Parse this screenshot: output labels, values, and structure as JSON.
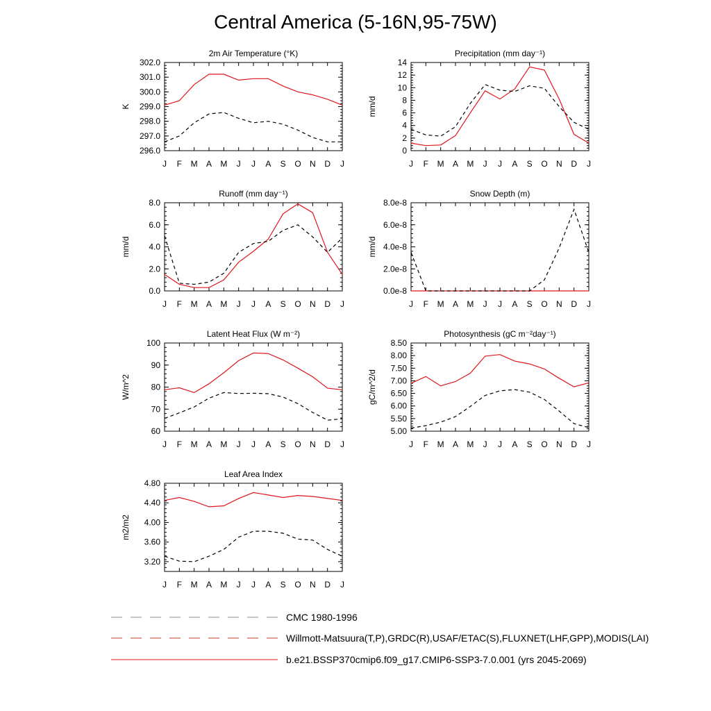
{
  "page_title": "Central America (5-16N,95-75W)",
  "colors": {
    "model": "#e0151b",
    "obs": "#000000",
    "axis": "#000000"
  },
  "months": [
    "J",
    "F",
    "M",
    "A",
    "M",
    "J",
    "J",
    "A",
    "S",
    "O",
    "N",
    "D",
    "J"
  ],
  "legend": [
    {
      "label": "CMC 1980-1996",
      "style": "dash-gray"
    },
    {
      "label": "Willmott-Matsuura(T,P),GRDC(R),USAF/ETAC(S),FLUXNET(LHF,GPP),MODIS(LAI)",
      "style": "dash-color"
    },
    {
      "label": "b.e21.BSSP370cmip6.f09_g17.CMIP6-SSP3-7.0.001 (yrs 2045-2069)",
      "style": "solid-red"
    }
  ],
  "chart_data": [
    {
      "type": "line",
      "title": "2m Air Temperature (°K)",
      "ylabel": "K",
      "ylim": [
        296.0,
        302.0
      ],
      "yticks": [
        "296.0",
        "297.0",
        "298.0",
        "299.0",
        "300.0",
        "301.0",
        "302.0"
      ],
      "x": [
        "J",
        "F",
        "M",
        "A",
        "M",
        "J",
        "J",
        "A",
        "S",
        "O",
        "N",
        "D",
        "J"
      ],
      "series": [
        {
          "role": "model",
          "values": [
            299.1,
            299.4,
            300.5,
            301.2,
            301.2,
            300.8,
            300.9,
            300.9,
            300.4,
            300.0,
            299.8,
            299.5,
            299.1
          ]
        },
        {
          "role": "obs",
          "values": [
            296.6,
            297.0,
            297.9,
            298.5,
            298.6,
            298.2,
            297.9,
            298.0,
            297.8,
            297.4,
            296.9,
            296.6,
            296.6
          ]
        }
      ]
    },
    {
      "type": "line",
      "title": "Precipitation (mm day⁻¹)",
      "ylabel": "mm/d",
      "ylim": [
        0,
        14
      ],
      "yticks": [
        "0",
        "2",
        "4",
        "6",
        "8",
        "10",
        "12",
        "14"
      ],
      "x": [
        "J",
        "F",
        "M",
        "A",
        "M",
        "J",
        "J",
        "A",
        "S",
        "O",
        "N",
        "D",
        "J"
      ],
      "series": [
        {
          "role": "model",
          "values": [
            1.2,
            0.8,
            0.9,
            2.4,
            6.0,
            9.5,
            8.2,
            9.8,
            13.3,
            12.8,
            8.2,
            2.6,
            1.2
          ]
        },
        {
          "role": "obs",
          "values": [
            3.4,
            2.5,
            2.3,
            3.8,
            7.5,
            10.5,
            9.6,
            9.4,
            10.3,
            9.9,
            7.0,
            4.5,
            3.4
          ]
        }
      ]
    },
    {
      "type": "line",
      "title": "Runoff (mm day⁻¹)",
      "ylabel": "mm/d",
      "ylim": [
        0,
        8
      ],
      "yticks": [
        "0.0",
        "2.0",
        "4.0",
        "6.0",
        "8.0"
      ],
      "x": [
        "J",
        "F",
        "M",
        "A",
        "M",
        "J",
        "J",
        "A",
        "S",
        "O",
        "N",
        "D",
        "J"
      ],
      "series": [
        {
          "role": "model",
          "values": [
            1.5,
            0.6,
            0.3,
            0.3,
            1.0,
            2.6,
            3.6,
            4.7,
            7.0,
            7.9,
            7.1,
            3.5,
            1.5
          ]
        },
        {
          "role": "obs",
          "values": [
            5.0,
            0.7,
            0.6,
            0.8,
            1.6,
            3.5,
            4.3,
            4.5,
            5.5,
            6.0,
            4.9,
            3.5,
            4.8
          ]
        }
      ]
    },
    {
      "type": "line",
      "title": "Snow Depth (m)",
      "ylabel": "mm/d",
      "ylim": [
        0,
        8e-08
      ],
      "yticks": [
        "0.0e-8",
        "2.0e-8",
        "4.0e-8",
        "6.0e-8",
        "8.0e-8"
      ],
      "x": [
        "J",
        "F",
        "M",
        "A",
        "M",
        "J",
        "J",
        "A",
        "S",
        "O",
        "N",
        "D",
        "J"
      ],
      "series": [
        {
          "role": "model",
          "values": [
            0,
            0,
            0,
            0,
            0,
            0,
            0,
            0,
            0,
            0,
            0,
            0,
            0
          ]
        },
        {
          "role": "obs",
          "values": [
            3.5e-08,
            0,
            0,
            0,
            0,
            0,
            0,
            0,
            0,
            1e-08,
            3.9e-08,
            7.4e-08,
            3.5e-08
          ]
        }
      ]
    },
    {
      "type": "line",
      "title": "Latent Heat Flux (W m⁻²)",
      "ylabel": "W/m^2",
      "ylim": [
        60,
        100
      ],
      "yticks": [
        "60",
        "70",
        "80",
        "90",
        "100"
      ],
      "x": [
        "J",
        "F",
        "M",
        "A",
        "M",
        "J",
        "J",
        "A",
        "S",
        "O",
        "N",
        "D",
        "J"
      ],
      "series": [
        {
          "role": "model",
          "values": [
            78.8,
            79.7,
            77.5,
            81.5,
            86.5,
            92.0,
            95.5,
            95.2,
            92.3,
            88.6,
            84.7,
            79.5,
            78.8
          ]
        },
        {
          "role": "obs",
          "values": [
            65.8,
            68.3,
            71.0,
            75.0,
            77.5,
            77.1,
            77.2,
            77.0,
            75.5,
            72.5,
            68.5,
            65.0,
            65.6
          ]
        }
      ]
    },
    {
      "type": "line",
      "title": "Photosynthesis (gC m⁻²day⁻¹)",
      "ylabel": "gC/m^2/d",
      "ylim": [
        5.0,
        8.5
      ],
      "yticks": [
        "5.00",
        "5.50",
        "6.00",
        "6.50",
        "7.00",
        "7.50",
        "8.00",
        "8.50"
      ],
      "x": [
        "J",
        "F",
        "M",
        "A",
        "M",
        "J",
        "J",
        "A",
        "S",
        "O",
        "N",
        "D",
        "J"
      ],
      "series": [
        {
          "role": "model",
          "values": [
            6.9,
            7.17,
            6.8,
            6.97,
            7.3,
            7.98,
            8.04,
            7.78,
            7.67,
            7.47,
            7.1,
            6.76,
            6.92
          ]
        },
        {
          "role": "obs",
          "values": [
            5.12,
            5.22,
            5.36,
            5.58,
            5.98,
            6.42,
            6.6,
            6.65,
            6.55,
            6.26,
            5.8,
            5.3,
            5.14
          ]
        }
      ]
    },
    {
      "type": "line",
      "title": "Leaf Area Index",
      "ylabel": "m2/m2",
      "ylim": [
        3.0,
        4.8
      ],
      "yticks": [
        "3.20",
        "3.60",
        "4.00",
        "4.40",
        "4.80"
      ],
      "x": [
        "J",
        "F",
        "M",
        "A",
        "M",
        "J",
        "J",
        "A",
        "S",
        "O",
        "N",
        "D",
        "J"
      ],
      "series": [
        {
          "role": "model",
          "values": [
            4.45,
            4.51,
            4.43,
            4.32,
            4.34,
            4.49,
            4.61,
            4.56,
            4.51,
            4.55,
            4.53,
            4.49,
            4.45
          ]
        },
        {
          "role": "obs",
          "values": [
            3.31,
            3.21,
            3.2,
            3.31,
            3.45,
            3.7,
            3.82,
            3.82,
            3.78,
            3.66,
            3.64,
            3.45,
            3.31
          ]
        }
      ]
    }
  ]
}
